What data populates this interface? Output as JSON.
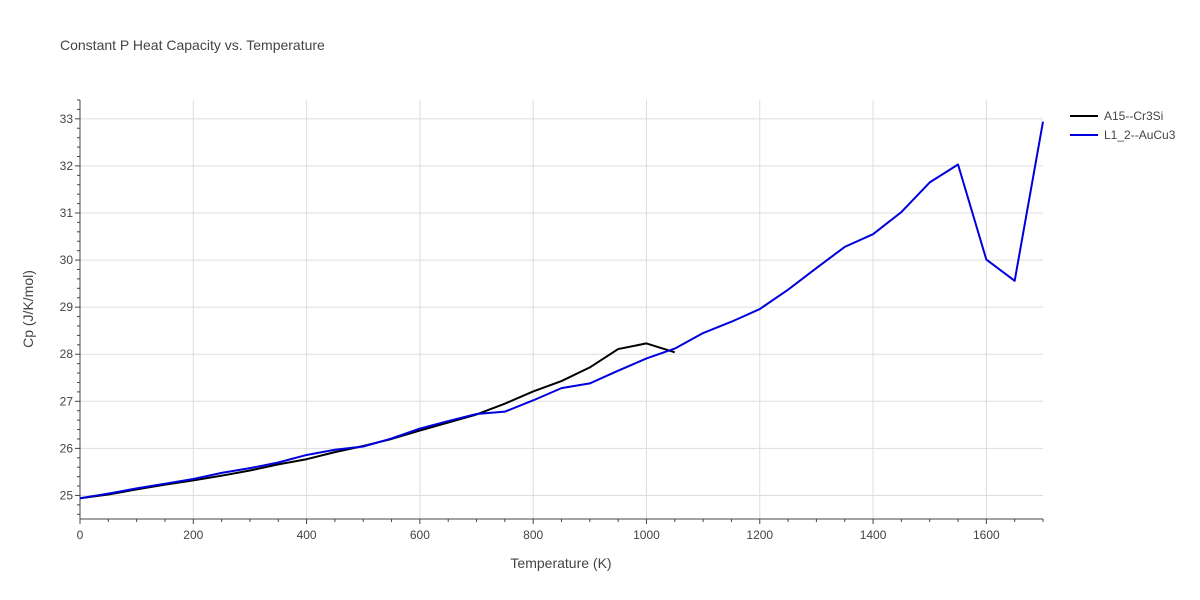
{
  "chart_data": {
    "type": "line",
    "title": "Constant P Heat Capacity vs. Temperature",
    "xlabel": "Temperature (K)",
    "ylabel": "Cp (J/K/mol)",
    "xlim": [
      0,
      1700
    ],
    "ylim": [
      24.5,
      33.4
    ],
    "xticks": [
      0,
      200,
      400,
      600,
      800,
      1000,
      1200,
      1400,
      1600
    ],
    "yticks": [
      25,
      26,
      27,
      28,
      29,
      30,
      31,
      32,
      33
    ],
    "grid": true,
    "legend": "top-right",
    "series": [
      {
        "name": "A15--Cr3Si",
        "color": "#000000",
        "x": [
          0,
          50,
          100,
          150,
          200,
          250,
          300,
          350,
          400,
          450,
          500,
          550,
          600,
          650,
          700,
          750,
          800,
          850,
          900,
          950,
          1000,
          1050
        ],
        "y": [
          24.94,
          25.02,
          25.13,
          25.23,
          25.32,
          25.42,
          25.53,
          25.66,
          25.77,
          25.92,
          26.05,
          26.2,
          26.38,
          26.55,
          26.72,
          26.95,
          27.21,
          27.43,
          27.72,
          28.11,
          28.23,
          28.04
        ]
      },
      {
        "name": "L1_2--AuCu3",
        "color": "#0000dd",
        "x": [
          0,
          50,
          100,
          150,
          200,
          250,
          300,
          350,
          400,
          450,
          500,
          550,
          600,
          650,
          700,
          750,
          800,
          850,
          900,
          950,
          1000,
          1050,
          1100,
          1150,
          1200,
          1250,
          1300,
          1350,
          1400,
          1450,
          1500,
          1550,
          1600,
          1650,
          1700
        ],
        "y": [
          24.94,
          25.04,
          25.15,
          25.25,
          25.35,
          25.48,
          25.58,
          25.7,
          25.86,
          25.97,
          26.04,
          26.21,
          26.42,
          26.58,
          26.73,
          26.78,
          27.02,
          27.28,
          27.38,
          27.65,
          27.91,
          28.12,
          28.45,
          28.69,
          28.96,
          29.37,
          29.83,
          30.28,
          30.55,
          31.02,
          31.65,
          32.03,
          30.01,
          29.56,
          32.94
        ]
      }
    ]
  }
}
